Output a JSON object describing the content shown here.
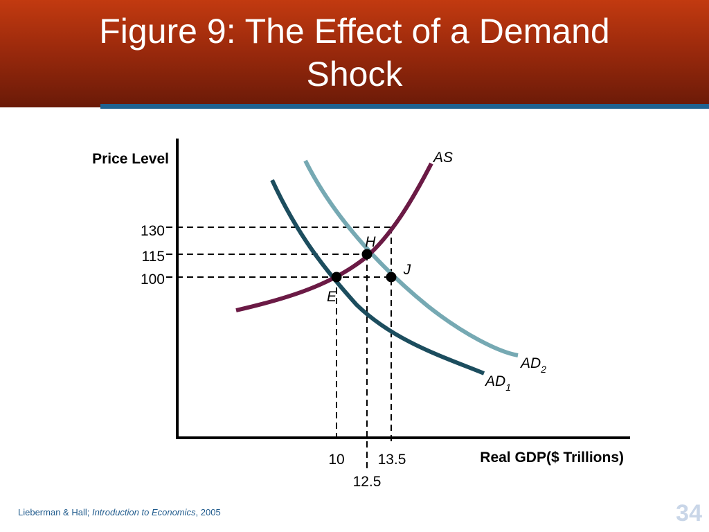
{
  "slide": {
    "title_line1": "Figure 9:  The Effect of a Demand",
    "title_line2": "Shock",
    "footer_authors": "Lieberman & Hall; ",
    "footer_book": "Introduction to Economics",
    "footer_year": ", 2005",
    "page_number": "34",
    "colors": {
      "header": "#9c2a0c",
      "rule": "#1f6391",
      "AS": "#6b1a45",
      "AD1": "#1c4d5e",
      "AD2": "#76a9b3"
    }
  },
  "chart_data": {
    "type": "line",
    "title": "Figure 9:  The Effect of a Demand Shock",
    "ylabel": "Price Level",
    "xlabel": "Real GDP($ Trillions)",
    "y_ticks": [
      "130",
      "115",
      "100"
    ],
    "x_ticks": [
      "10",
      "12.5",
      "13.5"
    ],
    "series": [
      {
        "name": "AS",
        "label_main": "AS",
        "label_sub": ""
      },
      {
        "name": "AD1",
        "label_main": "AD",
        "label_sub": "1"
      },
      {
        "name": "AD2",
        "label_main": "AD",
        "label_sub": "2"
      }
    ],
    "points": [
      {
        "name": "E",
        "x": 10,
        "y": 100
      },
      {
        "name": "H",
        "x": 12.5,
        "y": 115
      },
      {
        "name": "J",
        "x": 13.5,
        "y": 100
      }
    ],
    "grid": false
  }
}
